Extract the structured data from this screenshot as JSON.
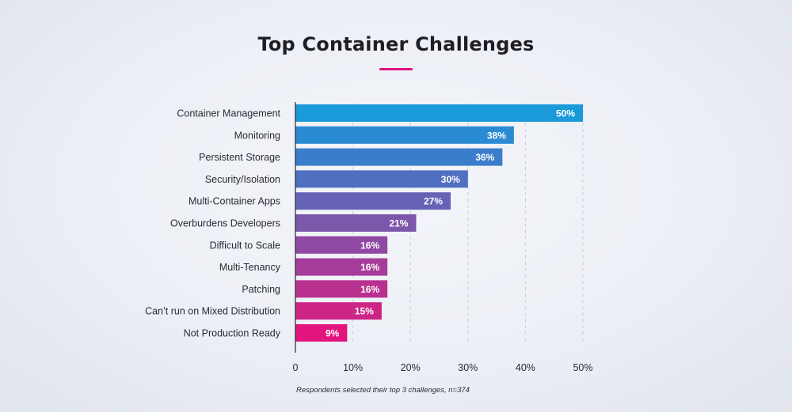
{
  "title": "Top Container Challenges",
  "footnote": "Respondents selected their top 3 challenges, n=374",
  "colors": {
    "title_underline": "#e0147f",
    "bar_start": "#1b9ad9",
    "bar_mid": "#6e5fb2",
    "bar_end": "#e2157f"
  },
  "chart_data": {
    "type": "bar",
    "orientation": "horizontal",
    "title": "Top Container Challenges",
    "categories": [
      "Container Management",
      "Monitoring",
      "Persistent Storage",
      "Security/Isolation",
      "Multi-Container Apps",
      "Overburdens Developers",
      "Difficult to Scale",
      "Multi-Tenancy",
      "Patching",
      "Can’t run on Mixed Distribution",
      "Not Production Ready"
    ],
    "values": [
      50,
      38,
      36,
      30,
      27,
      21,
      16,
      16,
      16,
      15,
      9
    ],
    "data_labels": [
      "50%",
      "38%",
      "36%",
      "30%",
      "27%",
      "21%",
      "16%",
      "16%",
      "16%",
      "15%",
      "9%"
    ],
    "bar_colors": [
      "#1b9ad9",
      "#2a8ad2",
      "#3a7dca",
      "#4f6fc1",
      "#6663b6",
      "#7c57aa",
      "#9049a2",
      "#a53c99",
      "#b8318f",
      "#cd2586",
      "#e2157f"
    ],
    "x_ticks": [
      0,
      10,
      20,
      30,
      40,
      50
    ],
    "x_tick_labels": [
      "0",
      "10%",
      "20%",
      "30%",
      "40%",
      "50%"
    ],
    "xlim": [
      0,
      50
    ],
    "grid": "vertical dashed",
    "legend": "none"
  }
}
